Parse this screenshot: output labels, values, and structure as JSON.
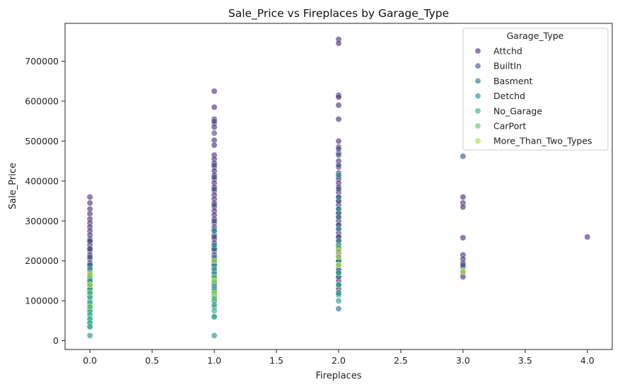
{
  "chart_data": {
    "type": "scatter",
    "title": "Sale_Price vs Fireplaces by Garage_Type",
    "xlabel": "Fireplaces",
    "ylabel": "Sale_Price",
    "xlim": [
      -0.2,
      4.2
    ],
    "ylim": [
      -22000,
      795000
    ],
    "xticks": [
      0.0,
      0.5,
      1.0,
      1.5,
      2.0,
      2.5,
      3.0,
      3.5,
      4.0
    ],
    "xtick_labels": [
      "0.0",
      "0.5",
      "1.0",
      "1.5",
      "2.0",
      "2.5",
      "3.0",
      "3.5",
      "4.0"
    ],
    "yticks": [
      0,
      100000,
      200000,
      300000,
      400000,
      500000,
      600000,
      700000
    ],
    "ytick_labels": [
      "0",
      "100000",
      "200000",
      "300000",
      "400000",
      "500000",
      "600000",
      "700000"
    ],
    "grid": false,
    "legend": {
      "title": "Garage_Type",
      "placement": "top-right"
    },
    "series": [
      {
        "name": "Attchd",
        "color": "#472c7a",
        "points": [
          [
            0,
            360000
          ],
          [
            0,
            345000
          ],
          [
            0,
            330000
          ],
          [
            0,
            318000
          ],
          [
            0,
            305000
          ],
          [
            0,
            295000
          ],
          [
            0,
            285000
          ],
          [
            0,
            275000
          ],
          [
            0,
            265000
          ],
          [
            0,
            255000
          ],
          [
            0,
            248000
          ],
          [
            0,
            240000
          ],
          [
            0,
            232000
          ],
          [
            0,
            225000
          ],
          [
            0,
            215000
          ],
          [
            0,
            205000
          ],
          [
            0,
            195000
          ],
          [
            0,
            185000
          ],
          [
            0,
            175000
          ],
          [
            0,
            165000
          ],
          [
            0,
            155000
          ],
          [
            0,
            145000
          ],
          [
            0,
            135000
          ],
          [
            0,
            125000
          ],
          [
            1,
            625000
          ],
          [
            1,
            585000
          ],
          [
            1,
            555000
          ],
          [
            1,
            545000
          ],
          [
            1,
            535000
          ],
          [
            1,
            502000
          ],
          [
            1,
            490000
          ],
          [
            1,
            465000
          ],
          [
            1,
            455000
          ],
          [
            1,
            445000
          ],
          [
            1,
            435000
          ],
          [
            1,
            425000
          ],
          [
            1,
            415000
          ],
          [
            1,
            405000
          ],
          [
            1,
            395000
          ],
          [
            1,
            385000
          ],
          [
            1,
            375000
          ],
          [
            1,
            365000
          ],
          [
            1,
            355000
          ],
          [
            1,
            345000
          ],
          [
            1,
            335000
          ],
          [
            1,
            325000
          ],
          [
            1,
            315000
          ],
          [
            1,
            305000
          ],
          [
            1,
            295000
          ],
          [
            1,
            285000
          ],
          [
            1,
            275000
          ],
          [
            1,
            265000
          ],
          [
            1,
            255000
          ],
          [
            1,
            245000
          ],
          [
            1,
            235000
          ],
          [
            1,
            225000
          ],
          [
            1,
            215000
          ],
          [
            1,
            205000
          ],
          [
            1,
            195000
          ],
          [
            1,
            185000
          ],
          [
            1,
            175000
          ],
          [
            1,
            165000
          ],
          [
            1,
            155000
          ],
          [
            1,
            145000
          ],
          [
            1,
            135000
          ],
          [
            1,
            125000
          ],
          [
            2,
            755000
          ],
          [
            2,
            745000
          ],
          [
            2,
            615000
          ],
          [
            2,
            610000
          ],
          [
            2,
            590000
          ],
          [
            2,
            555000
          ],
          [
            2,
            500000
          ],
          [
            2,
            485000
          ],
          [
            2,
            470000
          ],
          [
            2,
            450000
          ],
          [
            2,
            435000
          ],
          [
            2,
            420000
          ],
          [
            2,
            405000
          ],
          [
            2,
            395000
          ],
          [
            2,
            385000
          ],
          [
            2,
            372000
          ],
          [
            2,
            360000
          ],
          [
            2,
            350000
          ],
          [
            2,
            340000
          ],
          [
            2,
            330000
          ],
          [
            2,
            320000
          ],
          [
            2,
            310000
          ],
          [
            2,
            300000
          ],
          [
            2,
            290000
          ],
          [
            2,
            280000
          ],
          [
            2,
            270000
          ],
          [
            2,
            260000
          ],
          [
            2,
            250000
          ],
          [
            2,
            240000
          ],
          [
            2,
            230000
          ],
          [
            2,
            220000
          ],
          [
            2,
            210000
          ],
          [
            2,
            200000
          ],
          [
            2,
            190000
          ],
          [
            2,
            180000
          ],
          [
            2,
            170000
          ],
          [
            2,
            160000
          ],
          [
            2,
            150000
          ],
          [
            2,
            140000
          ],
          [
            2,
            130000
          ],
          [
            2,
            120000
          ],
          [
            3,
            360000
          ],
          [
            3,
            345000
          ],
          [
            3,
            335000
          ],
          [
            3,
            258000
          ],
          [
            3,
            215000
          ],
          [
            3,
            205000
          ],
          [
            3,
            195000
          ],
          [
            3,
            185000
          ],
          [
            3,
            170000
          ],
          [
            3,
            160000
          ],
          [
            4,
            260000
          ]
        ]
      },
      {
        "name": "BuiltIn",
        "color": "#3b518b",
        "points": [
          [
            0,
            250000
          ],
          [
            0,
            230000
          ],
          [
            0,
            210000
          ],
          [
            0,
            190000
          ],
          [
            1,
            550000
          ],
          [
            1,
            520000
          ],
          [
            1,
            440000
          ],
          [
            1,
            410000
          ],
          [
            1,
            380000
          ],
          [
            1,
            340000
          ],
          [
            1,
            300000
          ],
          [
            1,
            260000
          ],
          [
            1,
            230000
          ],
          [
            1,
            200000
          ],
          [
            2,
            480000
          ],
          [
            2,
            465000
          ],
          [
            2,
            440000
          ],
          [
            2,
            410000
          ],
          [
            2,
            380000
          ],
          [
            2,
            350000
          ],
          [
            2,
            320000
          ],
          [
            2,
            290000
          ],
          [
            2,
            260000
          ],
          [
            2,
            230000
          ],
          [
            2,
            200000
          ],
          [
            2,
            175000
          ],
          [
            3,
            462000
          ],
          [
            3,
            190000
          ]
        ]
      },
      {
        "name": "Basment",
        "color": "#2c718e",
        "points": [
          [
            0,
            190000
          ],
          [
            0,
            160000
          ],
          [
            0,
            140000
          ],
          [
            0,
            120000
          ],
          [
            1,
            280000
          ],
          [
            1,
            230000
          ],
          [
            1,
            190000
          ],
          [
            1,
            160000
          ],
          [
            1,
            140000
          ],
          [
            1,
            120000
          ],
          [
            1,
            100000
          ],
          [
            2,
            360000
          ],
          [
            2,
            310000
          ],
          [
            2,
            250000
          ],
          [
            2,
            200000
          ],
          [
            2,
            160000
          ],
          [
            2,
            120000
          ],
          [
            2,
            80000
          ]
        ]
      },
      {
        "name": "Detchd",
        "color": "#21908d",
        "points": [
          [
            0,
            180000
          ],
          [
            0,
            160000
          ],
          [
            0,
            150000
          ],
          [
            0,
            140000
          ],
          [
            0,
            130000
          ],
          [
            0,
            120000
          ],
          [
            0,
            110000
          ],
          [
            0,
            100000
          ],
          [
            0,
            90000
          ],
          [
            0,
            80000
          ],
          [
            0,
            70000
          ],
          [
            0,
            55000
          ],
          [
            0,
            45000
          ],
          [
            0,
            35000
          ],
          [
            0,
            13000
          ],
          [
            1,
            275000
          ],
          [
            1,
            240000
          ],
          [
            1,
            210000
          ],
          [
            1,
            190000
          ],
          [
            1,
            170000
          ],
          [
            1,
            150000
          ],
          [
            1,
            130000
          ],
          [
            1,
            115000
          ],
          [
            1,
            100000
          ],
          [
            1,
            85000
          ],
          [
            1,
            60000
          ],
          [
            1,
            13000
          ],
          [
            2,
            415000
          ],
          [
            2,
            330000
          ],
          [
            2,
            280000
          ],
          [
            2,
            240000
          ],
          [
            2,
            200000
          ],
          [
            2,
            170000
          ],
          [
            2,
            140000
          ],
          [
            2,
            120000
          ],
          [
            2,
            100000
          ]
        ]
      },
      {
        "name": "No_Garage",
        "color": "#27ad81",
        "points": [
          [
            0,
            150000
          ],
          [
            0,
            130000
          ],
          [
            0,
            110000
          ],
          [
            0,
            95000
          ],
          [
            0,
            85000
          ],
          [
            0,
            75000
          ],
          [
            0,
            65000
          ],
          [
            0,
            55000
          ],
          [
            0,
            45000
          ],
          [
            0,
            35000
          ],
          [
            1,
            180000
          ],
          [
            1,
            145000
          ],
          [
            1,
            125000
          ],
          [
            1,
            110000
          ],
          [
            1,
            90000
          ],
          [
            1,
            75000
          ],
          [
            1,
            60000
          ],
          [
            2,
            170000
          ],
          [
            2,
            140000
          ],
          [
            2,
            115000
          ]
        ]
      },
      {
        "name": "CarPort",
        "color": "#5dc863",
        "points": [
          [
            0,
            170000
          ],
          [
            0,
            120000
          ],
          [
            0,
            85000
          ],
          [
            1,
            160000
          ],
          [
            1,
            105000
          ],
          [
            2,
            235000
          ],
          [
            2,
            190000
          ],
          [
            3,
            175000
          ]
        ]
      },
      {
        "name": "More_Than_Two_Types",
        "color": "#aadc32",
        "points": [
          [
            0,
            165000
          ],
          [
            0,
            140000
          ],
          [
            1,
            200000
          ],
          [
            1,
            150000
          ],
          [
            1,
            120000
          ],
          [
            2,
            225000
          ],
          [
            2,
            210000
          ],
          [
            2,
            190000
          ],
          [
            3,
            172000
          ]
        ]
      }
    ]
  }
}
